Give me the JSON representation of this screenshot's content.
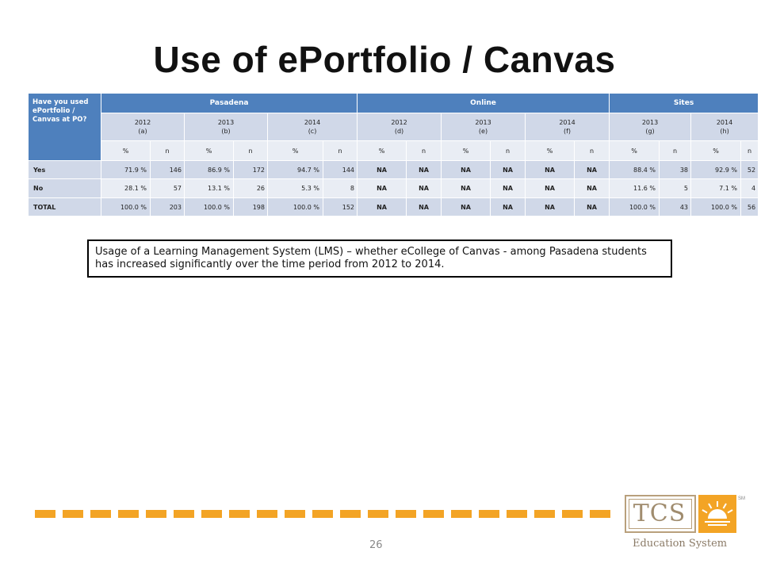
{
  "slide": {
    "title": "Use of ePortfolio / Canvas",
    "page_number": "26",
    "note": "Usage of a Learning Management System (LMS) – whether eCollege of Canvas - among Pasadena students has increased significantly over the time period from 2012 to 2014.",
    "logo": {
      "text": "TCS",
      "sm": "SM",
      "subtitle": "Education System"
    },
    "colors": {
      "header_blue": "#4e80bd",
      "row_dark": "#d0d8e8",
      "row_light": "#e9edf4",
      "dash_orange": "#f3a425"
    }
  },
  "table": {
    "question": "Have you used ePortfolio / Canvas at PO?",
    "groups": [
      "Pasadena",
      "Online",
      "Sites"
    ],
    "years": [
      {
        "year": "2012",
        "code": "(a)"
      },
      {
        "year": "2013",
        "code": "(b)"
      },
      {
        "year": "2014",
        "code": "(c)"
      },
      {
        "year": "2012",
        "code": "(d)"
      },
      {
        "year": "2013",
        "code": "(e)"
      },
      {
        "year": "2014",
        "code": "(f)"
      },
      {
        "year": "2013",
        "code": "(g)"
      },
      {
        "year": "2014",
        "code": "(h)"
      }
    ],
    "sub_pct": "%",
    "sub_n": "n",
    "rows": [
      {
        "label": "Yes",
        "cells": [
          "71.9 %",
          "146",
          "86.9 %",
          "172",
          "94.7 %",
          "144",
          "NA",
          "NA",
          "NA",
          "NA",
          "NA",
          "NA",
          "88.4 %",
          "38",
          "92.9 %",
          "52"
        ]
      },
      {
        "label": "No",
        "cells": [
          "28.1 %",
          "57",
          "13.1 %",
          "26",
          "5.3 %",
          "8",
          "NA",
          "NA",
          "NA",
          "NA",
          "NA",
          "NA",
          "11.6 %",
          "5",
          "7.1 %",
          "4"
        ]
      },
      {
        "label": "TOTAL",
        "cells": [
          "100.0 %",
          "203",
          "100.0 %",
          "198",
          "100.0 %",
          "152",
          "NA",
          "NA",
          "NA",
          "NA",
          "NA",
          "NA",
          "100.0 %",
          "43",
          "100.0 %",
          "56"
        ]
      }
    ]
  }
}
